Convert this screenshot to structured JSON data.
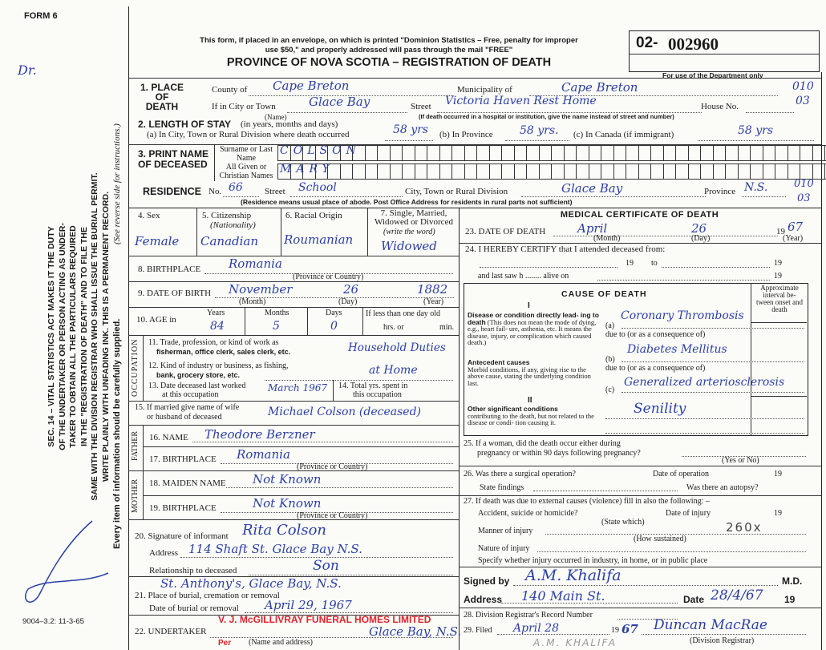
{
  "margin": {
    "form_no": "FORM 6",
    "note_dr": "Dr.",
    "statute": [
      "SEC. 14 – VITAL STATISTICS ACT MAKES IT THE DUTY",
      "OF THE UNDERTAKER OR PERSON ACTING AS UNDER-",
      "TAKER TO OBTAIN ALL THE PARTICULARS REQUIRED",
      "IN THE \"REGISTRATION OF DEATH\" AND TO FILE THE",
      "SAME WITH THE DIVISION REGISTRAR WHO SHALL ISSUE THE BURIAL PERMIT.",
      "WRITE PLAINLY WITH UNFADING INK. THIS IS A PERMANENT RECORD."
    ],
    "every_item": "Every item of information should be carefully supplied.",
    "see_reverse": "(See reverse side for instructions.)",
    "print_code": "9004–3.2: 11-3-65"
  },
  "header": {
    "mail_note_1": "This form, if placed in an envelope, on which is printed \"Dominion Statistics – Free, penalty for improper",
    "mail_note_2": "use $50,\" and properly addressed will pass through the mail \"FREE\"",
    "title": "PROVINCE OF NOVA SCOTIA – REGISTRATION OF DEATH",
    "reg_prefix": "02-",
    "reg_number": "002960",
    "dept_only": "For use of the Department only"
  },
  "place_of_death": {
    "label": "1. PLACE OF DEATH",
    "county_label": "County of",
    "county": "Cape Breton",
    "municipality_label": "Municipality of",
    "municipality": "Cape Breton",
    "city_label": "If in City or Town",
    "city": "Glace Bay",
    "name_caption": "(Name)",
    "street_label": "Street",
    "street": "Victoria Haven Rest Home",
    "house_label": "House No.",
    "institution_note": "(If death occurred in a hospital or institution, give the name instead of street and number)",
    "dept_code_1": "010",
    "dept_code_2": "03"
  },
  "length_of_stay": {
    "label": "2. LENGTH OF STAY",
    "label_note": "(in years, months and days)",
    "a_label": "(a) In City, Town or Rural Division where death occurred",
    "a": "58 yrs",
    "b_label": "(b) In Province",
    "b": "58 yrs.",
    "c_label": "(c) In Canada (if immigrant)",
    "c": "58 yrs"
  },
  "deceased_name": {
    "label": "3. PRINT NAME OF DECEASED",
    "surname_label": "Surname or Last Name",
    "surname": "COLSON",
    "given_label": "All Given or Christian Names",
    "given": "MARY"
  },
  "residence": {
    "label": "RESIDENCE",
    "no_label": "No.",
    "no": "66",
    "street_label": "Street",
    "street": "School",
    "city_label": "City, Town or Rural Division",
    "city": "Glace Bay",
    "province_label": "Province",
    "province": "N.S.",
    "note": "(Residence means usual place of abode. Post Office Address for residents in rural parts not sufficient)",
    "dept_code_1": "010",
    "dept_code_2": "03"
  },
  "personal": {
    "sex_label": "4. Sex",
    "sex": "Female",
    "citizenship_label": "5. Citizenship",
    "citizenship_sub": "(Nationality)",
    "citizenship": "Canadian",
    "racial_label": "6. Racial Origin",
    "racial": "Roumanian",
    "marital_label": "7. Single, Married, Widowed or Divorced",
    "marital_sub": "(write the word)",
    "marital": "Widowed",
    "birthplace_label": "8. BIRTHPLACE",
    "birthplace": "Romania",
    "province_country": "(Province or Country)",
    "dob_label": "9. DATE OF BIRTH",
    "dob_month": "November",
    "dob_day": "26",
    "dob_year": "1882",
    "month_cap": "(Month)",
    "day_cap": "(Day)",
    "year_cap": "(Year)",
    "age_label": "10. AGE in",
    "years_label": "Years",
    "years": "84",
    "months_label": "Months",
    "months": "5",
    "days_label": "Days",
    "days": "0",
    "less_day": "If less than one day old",
    "hrs": "hrs. or",
    "min": "min."
  },
  "occupation": {
    "side": "OCCUPATION",
    "trade_label_1": "11. Trade, profession, or kind of work as",
    "trade_label_2": "fisherman, office clerk, sales clerk, etc.",
    "trade": "Household Duties",
    "industry_label_1": "12. Kind of industry or business, as fishing,",
    "industry_label_2": "bank, grocery store, etc.",
    "industry": "at Home",
    "last_worked_label_1": "13. Date deceased last worked",
    "last_worked_label_2": "at this occupation",
    "last_worked": "March 1967",
    "total_yrs_label_1": "14. Total yrs. spent in",
    "total_yrs_label_2": "this occupation"
  },
  "spouse": {
    "label_1": "15. If married give name of wife",
    "label_2": "or husband of deceased",
    "value": "Michael Colson (deceased)"
  },
  "father": {
    "side": "FATHER",
    "name_label": "16. NAME",
    "name": "Theodore Berzner",
    "birthplace_label": "17. BIRTHPLACE",
    "birthplace": "Romania"
  },
  "mother": {
    "side": "MOTHER",
    "maiden_label": "18. MAIDEN NAME",
    "maiden": "Not Known",
    "birthplace_label": "19. BIRTHPLACE",
    "birthplace": "Not Known"
  },
  "informant": {
    "sig_label": "20. Signature of informant",
    "sig": "Rita Colson",
    "address_label": "Address",
    "address": "114 Shaft St. Glace Bay N.S.",
    "relation_label": "Relationship to deceased",
    "relation": "Son"
  },
  "burial": {
    "place_label": "21. Place of burial, cremation or removal",
    "place": "St. Anthony's, Glace Bay, N.S.",
    "date_label": "Date of burial or removal",
    "date": "April 29, 1967"
  },
  "undertaker": {
    "label": "22. UNDERTAKER",
    "stamp": "V. J. McGILLIVRAY FUNERAL HOMES LIMITED",
    "value": "Glace Bay, N.S.",
    "caption": "(Name and address)",
    "per": "Per"
  },
  "medical": {
    "title": "MEDICAL CERTIFICATE OF DEATH",
    "dod_label": "23. DATE OF DEATH",
    "dod_month": "April",
    "dod_day": "26",
    "dod_year_prefix": "19",
    "dod_year": "67",
    "certify_label": "24. I HEREBY CERTIFY that I attended deceased from:",
    "nineteen": "19",
    "to": "to",
    "last_saw": "and last saw h ........ alive on"
  },
  "cause": {
    "title": "CAUSE OF DEATH",
    "interval": "Approximate interval be- tween onset and death",
    "part1": "I",
    "direct_title": "Disease or condition directly lead- ing to death",
    "direct_note": "(This does not mean the mode of dying, e.g., heart fail- ure, asthenia, etc. It means the disease, injury, or complication which caused death.)",
    "a_label": "(a)",
    "a": "Coronary Thrombosis",
    "due_to_1": "due to (or as a consequence of)",
    "antecedent_title": "Antecedent causes",
    "antecedent_note": "Morbid conditions, if any, giving rise to the above cause, stating the underlying condition last.",
    "b_label": "(b)",
    "b": "Diabetes Mellitus",
    "due_to_2": "due to (or as a consequence of)",
    "c_label": "(c)",
    "c": "Generalized arteriosclerosis",
    "part2": "II",
    "other_title": "Other significant conditions",
    "other_note": "contributing to the death, but not related to the disease or condi- tion causing it.",
    "other": "Senility"
  },
  "q25": {
    "label_1": "25. If a woman, did the death occur either during",
    "label_2": "pregnancy or within 90 days following pregnancy?",
    "caption": "(Yes or No)"
  },
  "q26": {
    "label": "26. Was there a surgical operation?",
    "date_label": "Date of operation",
    "nineteen": "19",
    "findings": "State findings",
    "autopsy": "Was there an autopsy?"
  },
  "q27": {
    "label": "27. If death was due to external causes (violence) fill in also the following: –",
    "accident": "Accident, suicide or homicide?",
    "state_which": "(State which)",
    "injury_date": "Date of injury",
    "nineteen": "19",
    "manner": "Manner of injury",
    "manner_value": "260x",
    "how": "(How sustained)",
    "nature": "Nature of injury",
    "specify": "Specify whether injury occurred in industry, in home, or in public place"
  },
  "signature": {
    "signed_label": "Signed by",
    "signed": "A.M. Khalifa",
    "md": "M.D.",
    "address_label": "Address",
    "address": "140 Main St.",
    "date_label": "Date",
    "date": "28/4/67",
    "nineteen": "19"
  },
  "registrar": {
    "record_label": "28. Division Registrar's Record Number",
    "filed_label": "29. Filed",
    "filed": "April 28",
    "filed_year_prefix": "19",
    "filed_year": "67",
    "registrar": "Duncan MacRae",
    "caption": "(Division Registrar)",
    "printed_name": "A.M. KHALIFA"
  },
  "colors": {
    "ink": "#2b3fa6",
    "stamp": "#e0232b"
  }
}
